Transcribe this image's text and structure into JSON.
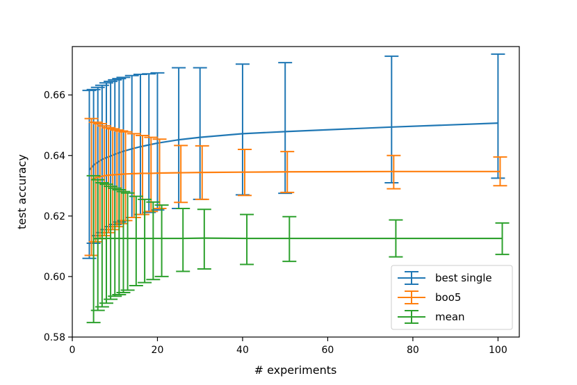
{
  "chart_data": {
    "type": "line",
    "title": "",
    "xlabel": "# experiments",
    "ylabel": "test accuracy",
    "xlim": [
      0,
      105
    ],
    "ylim": [
      0.58,
      0.676
    ],
    "xticks": [
      0,
      20,
      40,
      60,
      80,
      100
    ],
    "xtick_labels": [
      "0",
      "20",
      "40",
      "60",
      "80",
      "100"
    ],
    "yticks": [
      0.58,
      0.6,
      0.62,
      0.64,
      0.66
    ],
    "ytick_labels": [
      "0.58",
      "0.60",
      "0.62",
      "0.64",
      "0.66"
    ],
    "grid": false,
    "legend_position": "lower-right",
    "x": [
      4,
      5,
      6,
      7,
      8,
      9,
      10,
      11,
      12,
      14,
      16,
      18,
      20,
      25,
      30,
      40,
      50,
      75,
      100
    ],
    "series": [
      {
        "name": "best single",
        "color": "#1f77b4",
        "x_offset": 0,
        "values": [
          0.6352,
          0.6368,
          0.6378,
          0.6387,
          0.6393,
          0.6398,
          0.6404,
          0.6409,
          0.6414,
          0.6422,
          0.6429,
          0.6435,
          0.6441,
          0.6452,
          0.646,
          0.6472,
          0.6479,
          0.6494,
          0.6507
        ],
        "err_low": [
          0.606,
          0.611,
          0.6135,
          0.6145,
          0.6155,
          0.6165,
          0.6172,
          0.618,
          0.6185,
          0.6195,
          0.6205,
          0.6212,
          0.622,
          0.6225,
          0.6255,
          0.627,
          0.6275,
          0.631,
          0.6325
        ],
        "err_high": [
          0.6615,
          0.6618,
          0.6625,
          0.6632,
          0.664,
          0.6645,
          0.665,
          0.6654,
          0.6658,
          0.6664,
          0.6668,
          0.667,
          0.6673,
          0.669,
          0.669,
          0.6702,
          0.6707,
          0.6728,
          0.6735
        ]
      },
      {
        "name": "boo5",
        "color": "#ff7f0e",
        "x_offset": 0.5,
        "values": [
          0.632,
          0.6326,
          0.633,
          0.6333,
          0.6335,
          0.6336,
          0.6337,
          0.6338,
          0.6339,
          0.634,
          0.6341,
          0.6341,
          0.6342,
          0.6343,
          0.6344,
          0.6345,
          0.6346,
          0.6347,
          0.6347
        ],
        "err_low": [
          0.607,
          0.6115,
          0.6125,
          0.6135,
          0.6145,
          0.6155,
          0.6165,
          0.6175,
          0.6185,
          0.6195,
          0.6205,
          0.6215,
          0.6225,
          0.6245,
          0.6255,
          0.6268,
          0.6278,
          0.629,
          0.63
        ],
        "err_high": [
          0.6522,
          0.651,
          0.6505,
          0.6498,
          0.6492,
          0.6488,
          0.6484,
          0.6481,
          0.6478,
          0.6472,
          0.6466,
          0.646,
          0.6454,
          0.6433,
          0.6432,
          0.642,
          0.6413,
          0.64,
          0.6395
        ]
      },
      {
        "name": "mean",
        "color": "#2ca02c",
        "x_offset": 1,
        "values": [
          0.6125,
          0.6126,
          0.6126,
          0.6126,
          0.6126,
          0.6126,
          0.6126,
          0.6126,
          0.6126,
          0.6126,
          0.6126,
          0.6126,
          0.6126,
          0.6126,
          0.6127,
          0.6126,
          0.6126,
          0.6126,
          0.6126
        ],
        "err_low": [
          0.5848,
          0.5888,
          0.59,
          0.5912,
          0.5925,
          0.5935,
          0.594,
          0.5947,
          0.5955,
          0.597,
          0.598,
          0.599,
          0.6,
          0.6017,
          0.6025,
          0.604,
          0.605,
          0.6065,
          0.6073
        ],
        "err_high": [
          0.6333,
          0.632,
          0.631,
          0.6305,
          0.6298,
          0.6292,
          0.6287,
          0.6281,
          0.6276,
          0.6265,
          0.6255,
          0.6246,
          0.6236,
          0.6225,
          0.6222,
          0.6205,
          0.6198,
          0.6187,
          0.6177
        ]
      }
    ]
  }
}
